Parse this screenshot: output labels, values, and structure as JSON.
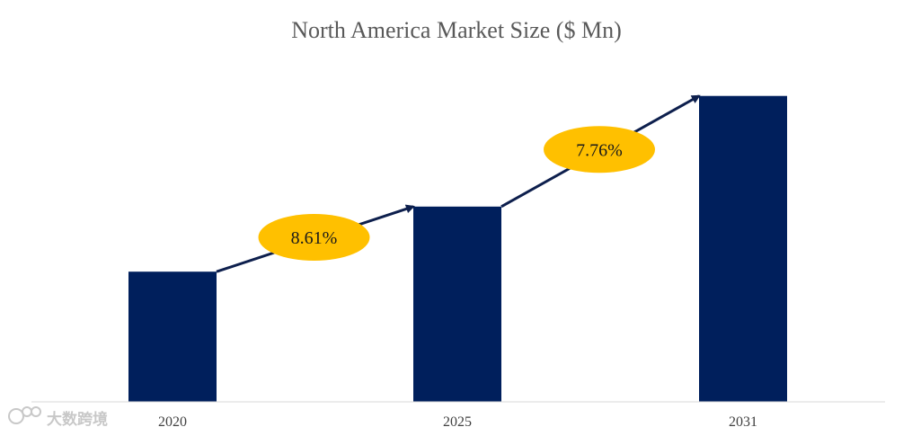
{
  "chart_data": {
    "type": "bar",
    "title": "North America Market Size ($ Mn)",
    "categories": [
      "2020",
      "2025",
      "2031"
    ],
    "values": [
      1,
      1.5,
      2.35
    ],
    "ylim": [
      0,
      2.5
    ],
    "grid": false,
    "legend": "none",
    "growth_labels": [
      {
        "from": "2020",
        "to": "2025",
        "label": "8.61%"
      },
      {
        "from": "2025",
        "to": "2031",
        "label": "7.76%"
      }
    ]
  },
  "colors": {
    "bar": "#001f5c",
    "arrow": "#0d1f4d",
    "growth_bubble": "#ffc000",
    "axis": "#d9d9d9"
  },
  "watermark": {
    "text": "大数跨境"
  }
}
